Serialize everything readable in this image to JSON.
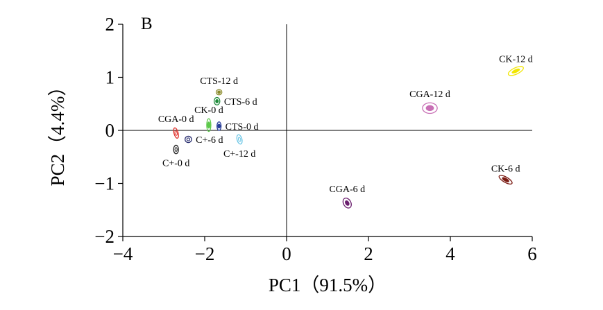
{
  "chart_data": {
    "type": "scatter",
    "panel_label": "B",
    "xlabel": "PC1（91.5%）",
    "ylabel": "PC2（4.4%）",
    "xlim": [
      -4,
      6
    ],
    "ylim": [
      -2,
      2
    ],
    "xticks": [
      {
        "value": -4,
        "label": "−4"
      },
      {
        "value": -2,
        "label": "−2"
      },
      {
        "value": 0,
        "label": "0"
      },
      {
        "value": 2,
        "label": "2"
      },
      {
        "value": 4,
        "label": "4"
      },
      {
        "value": 6,
        "label": "6"
      }
    ],
    "yticks": [
      {
        "value": 2,
        "label": "2"
      },
      {
        "value": 1,
        "label": "1"
      },
      {
        "value": 0,
        "label": "0"
      },
      {
        "value": -1,
        "label": "−1"
      },
      {
        "value": -2,
        "label": "−2"
      }
    ],
    "reference_lines": {
      "x": 0,
      "y": 0
    },
    "grid": false,
    "points": [
      {
        "label": "CK-12 d",
        "x": 5.6,
        "y": 1.12,
        "color": "#f2e600",
        "fill": "#f2e600",
        "rx": 0.2,
        "ry": 0.06,
        "angle": 25,
        "label_side": "above"
      },
      {
        "label": "CGA-12 d",
        "x": 3.5,
        "y": 0.42,
        "color": "#c86fb5",
        "fill": "#c86fb5",
        "rx": 0.18,
        "ry": 0.1,
        "angle": 0,
        "label_side": "above"
      },
      {
        "label": "CK-6 d",
        "x": 5.35,
        "y": -0.93,
        "color": "#7a1a12",
        "fill": "#7a1a12",
        "rx": 0.18,
        "ry": 0.05,
        "angle": -30,
        "label_side": "above"
      },
      {
        "label": "CGA-6 d",
        "x": 1.48,
        "y": -1.37,
        "color": "#6b1f6e",
        "fill": "#6b1f6e",
        "rx": 0.09,
        "ry": 0.1,
        "angle": 30,
        "label_side": "above"
      },
      {
        "label": "CTS-12 d",
        "x": -1.65,
        "y": 0.72,
        "color": "#8a8a2a",
        "fill": "#8a8a2a",
        "rx": 0.07,
        "ry": 0.05,
        "angle": 0,
        "label_side": "above"
      },
      {
        "label": "CTS-6 d",
        "x": -1.7,
        "y": 0.55,
        "color": "#1e8a3a",
        "fill": "#1e8a3a",
        "rx": 0.07,
        "ry": 0.07,
        "angle": 0,
        "label_side": "right"
      },
      {
        "label": "CK-0 d",
        "x": -1.9,
        "y": 0.1,
        "color": "#5cc84a",
        "fill": "#5cc84a",
        "rx": 0.05,
        "ry": 0.12,
        "angle": 0,
        "label_side": "above"
      },
      {
        "label": "CTS-0 d",
        "x": -1.65,
        "y": 0.08,
        "color": "#2a3f9a",
        "fill": "#2a3f9a",
        "rx": 0.05,
        "ry": 0.08,
        "angle": 0,
        "label_side": "right"
      },
      {
        "label": "CGA-0 d",
        "x": -2.7,
        "y": -0.05,
        "color": "#e0302a",
        "fill": "none",
        "rx": 0.05,
        "ry": 0.1,
        "angle": 15,
        "label_side": "above"
      },
      {
        "label": "C+-6 d",
        "x": -2.4,
        "y": -0.17,
        "color": "#2a2f70",
        "fill": "none",
        "rx": 0.08,
        "ry": 0.06,
        "angle": 0,
        "label_side": "right"
      },
      {
        "label": "C+-12 d",
        "x": -1.15,
        "y": -0.17,
        "color": "#6ec7e6",
        "fill": "none",
        "rx": 0.06,
        "ry": 0.09,
        "angle": 15,
        "label_side": "below"
      },
      {
        "label": "C+-0 d",
        "x": -2.7,
        "y": -0.36,
        "color": "#222222",
        "fill": "none",
        "rx": 0.06,
        "ry": 0.08,
        "angle": 0,
        "label_side": "below"
      }
    ]
  }
}
